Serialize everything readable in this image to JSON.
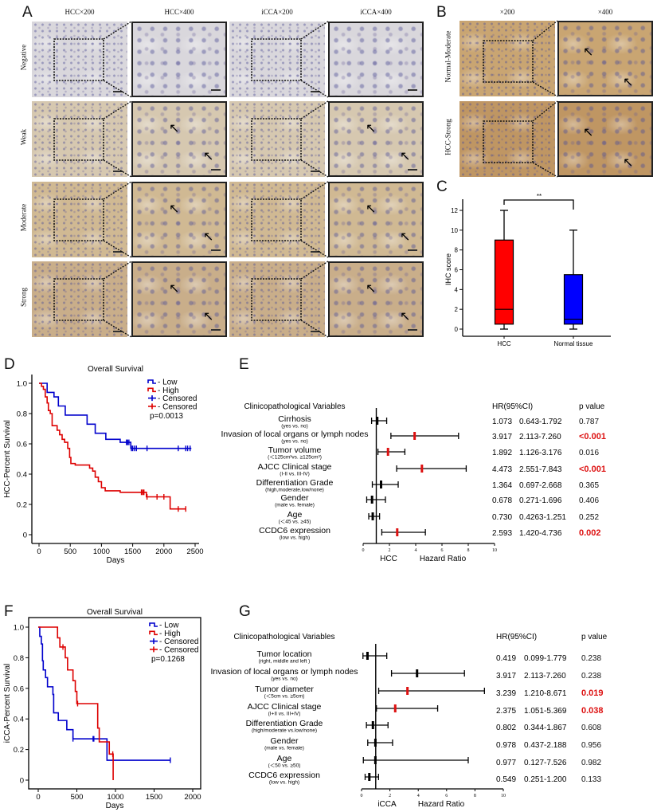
{
  "panel_labels": {
    "a": "A",
    "b": "B",
    "c": "C",
    "d": "D",
    "e": "E",
    "f": "F",
    "g": "G"
  },
  "panel_a": {
    "columns": [
      "HCC×200",
      "HCC×400",
      "iCCA×200",
      "iCCA×400"
    ],
    "rows": [
      "Negative",
      "Weak",
      "Moderate",
      "Strong"
    ],
    "stain_colors": {
      "Negative": "#d9d7dc",
      "Weak": "#d6c8b0",
      "Moderate": "#d0b993",
      "Strong": "#c9ae8a"
    }
  },
  "panel_b": {
    "columns": [
      "×200",
      "×400"
    ],
    "rows": [
      "Normal-Moderate",
      "HCC-Strong"
    ],
    "stain_colors": {
      "Normal-Moderate": "#c9a572",
      "HCC-Strong": "#bf9663"
    }
  },
  "chart_data": [
    {
      "id": "C",
      "type": "box",
      "ylabel": "IHC score",
      "ylim": [
        0,
        12
      ],
      "yticks": [
        "0",
        "2",
        "4",
        "6",
        "8",
        "10",
        "12"
      ],
      "categories": [
        "HCC",
        "Normal tissue"
      ],
      "boxes": [
        {
          "category": "HCC",
          "min": 0,
          "q1": 0.5,
          "median": 2,
          "q3": 9,
          "max": 12,
          "color": "#ff0000"
        },
        {
          "category": "Normal tissue",
          "min": 0,
          "q1": 0.5,
          "median": 1,
          "q3": 5.5,
          "max": 10,
          "color": "#0000ff"
        }
      ],
      "significance": "**"
    },
    {
      "id": "D",
      "type": "line",
      "subtype": "kaplan-meier",
      "title": "Overall Survival",
      "xlabel": "Days",
      "ylabel": "HCC-Percent Survival",
      "xlim": [
        0,
        2500
      ],
      "ylim": [
        0,
        1.0
      ],
      "xticks": [
        "0",
        "500",
        "1000",
        "1500",
        "2000",
        "2500"
      ],
      "yticks": [
        "0",
        "0.2",
        "0.4",
        "0.6",
        "0.8",
        "1.0"
      ],
      "legend": [
        "- Low",
        "- High",
        "- Censored",
        "- Censored"
      ],
      "legend_position": "top-right",
      "p_text": "p=0.0013",
      "series": [
        {
          "name": "Low",
          "color": "#0000cc",
          "end": 2440,
          "steps": [
            [
              0,
              1.0
            ],
            [
              130,
              0.94
            ],
            [
              240,
              0.91
            ],
            [
              310,
              0.85
            ],
            [
              420,
              0.79
            ],
            [
              770,
              0.73
            ],
            [
              900,
              0.67
            ],
            [
              1070,
              0.63
            ],
            [
              1300,
              0.61
            ],
            [
              1470,
              0.57
            ]
          ],
          "censored": [
            1400,
            1420,
            1440,
            1480,
            1500,
            1530,
            1560,
            1730,
            2230,
            2350,
            2380,
            2420
          ]
        },
        {
          "name": "High",
          "color": "#dd0000",
          "end": 2350,
          "steps": [
            [
              0,
              1.0
            ],
            [
              40,
              0.98
            ],
            [
              70,
              0.96
            ],
            [
              100,
              0.91
            ],
            [
              130,
              0.87
            ],
            [
              150,
              0.82
            ],
            [
              180,
              0.8
            ],
            [
              210,
              0.72
            ],
            [
              290,
              0.69
            ],
            [
              330,
              0.66
            ],
            [
              370,
              0.63
            ],
            [
              410,
              0.61
            ],
            [
              460,
              0.57
            ],
            [
              490,
              0.51
            ],
            [
              510,
              0.47
            ],
            [
              580,
              0.46
            ],
            [
              810,
              0.44
            ],
            [
              860,
              0.42
            ],
            [
              900,
              0.38
            ],
            [
              950,
              0.35
            ],
            [
              1000,
              0.31
            ],
            [
              1060,
              0.29
            ],
            [
              1300,
              0.28
            ],
            [
              1720,
              0.25
            ],
            [
              2100,
              0.17
            ]
          ],
          "censored": [
            1640,
            1660,
            1680,
            1730,
            1890,
            2000,
            2230,
            2350
          ]
        }
      ]
    },
    {
      "id": "E",
      "type": "forest",
      "header": {
        "variables": "Clinicopathological Variables",
        "hr": "HR(95%CI)",
        "p": "p value"
      },
      "xlabel_prefix": "HCC",
      "xlabel": "Hazard Ratio",
      "xlim": [
        0,
        10
      ],
      "xticks": [
        "0",
        "2",
        "4",
        "6",
        "8",
        "10"
      ],
      "rows": [
        {
          "label": "Cirrhosis",
          "sub": "(yes vs. no)",
          "hr": 1.073,
          "lo": 0.643,
          "hi": 1.792,
          "hr_text": "1.073",
          "ci_text": "0.643-1.792",
          "p": "0.787",
          "marker_red": false,
          "p_red": false
        },
        {
          "label": "Invasion of local organs or lymph nodes",
          "sub": "(yes vs. no)",
          "hr": 3.917,
          "lo": 2.113,
          "hi": 7.26,
          "hr_text": "3.917",
          "ci_text": "2.113-7.260",
          "p": "<0.001",
          "marker_red": true,
          "p_red": true
        },
        {
          "label": "Tumor volume",
          "sub": "(＜125cm³vs. ≥125cm³)",
          "hr": 1.892,
          "lo": 1.126,
          "hi": 3.176,
          "hr_text": "1.892",
          "ci_text": "1.126-3.176",
          "p": "0.016",
          "marker_red": true,
          "p_red": false
        },
        {
          "label": "AJCC Clinical stage",
          "sub": "(I-II vs. III-IV)",
          "hr": 4.473,
          "lo": 2.551,
          "hi": 7.843,
          "hr_text": "4.473",
          "ci_text": "2.551-7.843",
          "p": "<0.001",
          "marker_red": true,
          "p_red": true
        },
        {
          "label": "Differentiation Grade",
          "sub": "(high,moderate,low/none)",
          "hr": 1.364,
          "lo": 0.697,
          "hi": 2.668,
          "hr_text": "1.364",
          "ci_text": "0.697-2.668",
          "p": "0.365",
          "marker_red": false,
          "p_red": false
        },
        {
          "label": "Gender",
          "sub": "(male vs. female)",
          "hr": 0.678,
          "lo": 0.271,
          "hi": 1.696,
          "hr_text": "0.678",
          "ci_text": "0.271-1.696",
          "p": "0.406",
          "marker_red": false,
          "p_red": false
        },
        {
          "label": "Age",
          "sub": "(＜45 vs. ≥45)",
          "hr": 0.73,
          "lo": 0.4263,
          "hi": 1.251,
          "hr_text": "0.730",
          "ci_text": "0.4263-1.251",
          "p": "0.252",
          "marker_red": false,
          "p_red": false
        },
        {
          "label": "CCDC6 expression",
          "sub": "(low vs. high)",
          "hr": 2.593,
          "lo": 1.42,
          "hi": 4.736,
          "hr_text": "2.593",
          "ci_text": "1.420-4.736",
          "p": "0.002",
          "marker_red": true,
          "p_red": true
        }
      ]
    },
    {
      "id": "F",
      "type": "line",
      "subtype": "kaplan-meier",
      "title": "Overall Survival",
      "xlabel": "Days",
      "ylabel": "iCCA-Percent Survival",
      "xlim": [
        0,
        2000
      ],
      "ylim": [
        0,
        1.0
      ],
      "xticks": [
        "0",
        "500",
        "1000",
        "1500",
        "2000"
      ],
      "yticks": [
        "0",
        "0.2",
        "0.4",
        "0.6",
        "0.8",
        "1.0"
      ],
      "legend": [
        "- Low",
        "- High",
        "- Censored",
        "- Censored"
      ],
      "legend_position": "top-right",
      "p_text": "p=0.1268",
      "series": [
        {
          "name": "Low",
          "color": "#0000cc",
          "end": 1710,
          "steps": [
            [
              0,
              1.0
            ],
            [
              20,
              0.94
            ],
            [
              40,
              0.89
            ],
            [
              55,
              0.78
            ],
            [
              65,
              0.72
            ],
            [
              95,
              0.67
            ],
            [
              120,
              0.61
            ],
            [
              190,
              0.56
            ],
            [
              200,
              0.44
            ],
            [
              260,
              0.39
            ],
            [
              370,
              0.33
            ],
            [
              450,
              0.27
            ],
            [
              890,
              0.13
            ]
          ],
          "censored": [
            450,
            710,
            720,
            1710
          ]
        },
        {
          "name": "High",
          "color": "#dd0000",
          "end": 970,
          "steps": [
            [
              0,
              1.0
            ],
            [
              250,
              0.93
            ],
            [
              280,
              0.87
            ],
            [
              350,
              0.8
            ],
            [
              380,
              0.72
            ],
            [
              450,
              0.65
            ],
            [
              480,
              0.58
            ],
            [
              500,
              0.5
            ],
            [
              770,
              0.34
            ],
            [
              790,
              0.25
            ],
            [
              920,
              0.17
            ],
            [
              970,
              0.0
            ]
          ],
          "censored": [
            320,
            510,
            965
          ]
        }
      ]
    },
    {
      "id": "G",
      "type": "forest",
      "header": {
        "variables": "Clinicopathological Variables",
        "hr": "HR(95%CI)",
        "p": "p value"
      },
      "xlabel_prefix": "iCCA",
      "xlabel": "Hazard Ratio",
      "xlim": [
        0,
        10
      ],
      "xticks": [
        "0",
        "2",
        "4",
        "6",
        "8",
        "10"
      ],
      "rows": [
        {
          "label": "Tumor location",
          "sub": "(right, middle and left )",
          "hr": 0.419,
          "lo": 0.099,
          "hi": 1.779,
          "hr_text": "0.419",
          "ci_text": "0.099-1.779",
          "p": "0.238",
          "marker_red": false,
          "p_red": false
        },
        {
          "label": "Invasion of local organs or lymph nodes",
          "sub": "(yes vs. no)",
          "hr": 3.917,
          "lo": 2.113,
          "hi": 7.26,
          "hr_text": "3.917",
          "ci_text": "2.113-7.260",
          "p": "0.238",
          "marker_red": false,
          "p_red": false
        },
        {
          "label": "Tumor diameter",
          "sub": "(＜5cm vs. ≥5cm)",
          "hr": 3.239,
          "lo": 1.21,
          "hi": 8.671,
          "hr_text": "3.239",
          "ci_text": "1.210-8.671",
          "p": "0.019",
          "marker_red": true,
          "p_red": true
        },
        {
          "label": "AJCC Clinical stage",
          "sub": "(I+II vs. III+IV)",
          "hr": 2.375,
          "lo": 1.051,
          "hi": 5.369,
          "hr_text": "2.375",
          "ci_text": "1.051-5.369",
          "p": "0.038",
          "marker_red": true,
          "p_red": true
        },
        {
          "label": "Differentiation Grade",
          "sub": "(high/moderate vs.low/none)",
          "hr": 0.802,
          "lo": 0.344,
          "hi": 1.867,
          "hr_text": "0.802",
          "ci_text": "0.344-1.867",
          "p": "0.608",
          "marker_red": false,
          "p_red": false
        },
        {
          "label": "Gender",
          "sub": "(male vs. female)",
          "hr": 0.978,
          "lo": 0.437,
          "hi": 2.188,
          "hr_text": "0.978",
          "ci_text": "0.437-2.188",
          "p": "0.956",
          "marker_red": false,
          "p_red": false
        },
        {
          "label": "Age",
          "sub": "(＜50 vs. ≥50)",
          "hr": 0.977,
          "lo": 0.127,
          "hi": 7.526,
          "hr_text": "0.977",
          "ci_text": "0.127-7.526",
          "p": "0.982",
          "marker_red": false,
          "p_red": false
        },
        {
          "label": "CCDC6 expression",
          "sub": "(low vs. high)",
          "hr": 0.549,
          "lo": 0.251,
          "hi": 1.2,
          "hr_text": "0.549",
          "ci_text": "0.251-1.200",
          "p": "0.133",
          "marker_red": false,
          "p_red": false
        }
      ]
    }
  ]
}
